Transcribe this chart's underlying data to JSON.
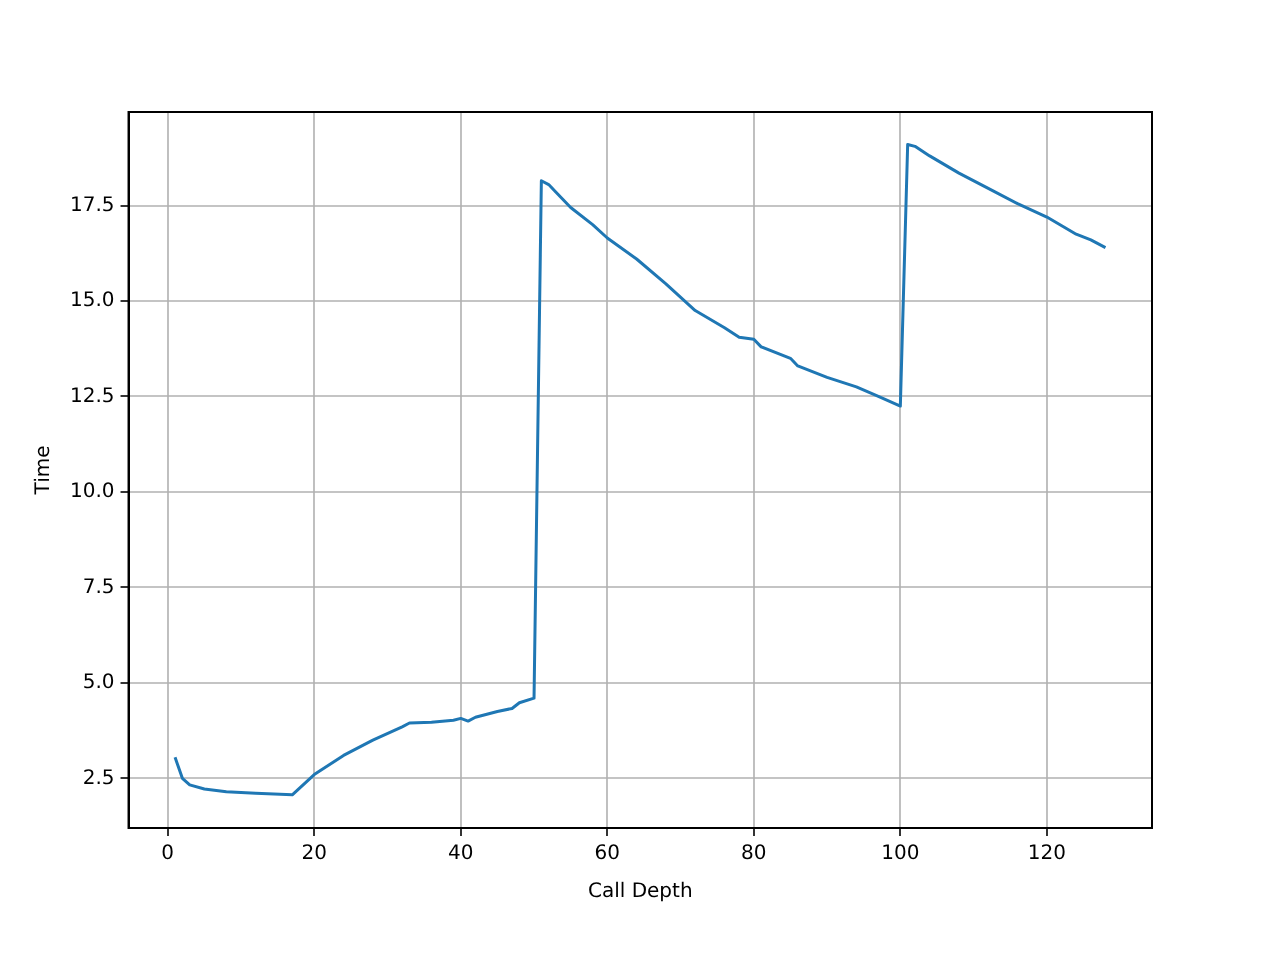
{
  "chart_data": {
    "type": "line",
    "xlabel": "Call Depth",
    "ylabel": "Time",
    "xlim": [
      -5.35,
      134.35
    ],
    "ylim": [
      1.2,
      19.95
    ],
    "xticks": [
      0,
      20,
      40,
      60,
      80,
      100,
      120
    ],
    "yticks": [
      {
        "value": 2.5,
        "label": "2.5"
      },
      {
        "value": 5,
        "label": "5.0"
      },
      {
        "value": 7.5,
        "label": "7.5"
      },
      {
        "value": 10,
        "label": "10.0"
      },
      {
        "value": 12.5,
        "label": "12.5"
      },
      {
        "value": 15,
        "label": "15.0"
      },
      {
        "value": 17.5,
        "label": "17.5"
      }
    ],
    "grid": true,
    "series": [
      {
        "color": "#1f77b4",
        "x": [
          1,
          2,
          3,
          5,
          8,
          12,
          17,
          20,
          24,
          28,
          32,
          33,
          36,
          39,
          40,
          41,
          42,
          45,
          47,
          48,
          50,
          51,
          52,
          53,
          55,
          58,
          60,
          64,
          68,
          72,
          76,
          78,
          80,
          81,
          85,
          86,
          90,
          94,
          97,
          100,
          101,
          102,
          104,
          108,
          112,
          116,
          120,
          124,
          126,
          128
        ],
        "values": [
          3.05,
          2.5,
          2.33,
          2.22,
          2.15,
          2.11,
          2.07,
          2.6,
          3.1,
          3.5,
          3.85,
          3.95,
          3.97,
          4.02,
          4.07,
          4.0,
          4.1,
          4.25,
          4.33,
          4.48,
          4.6,
          18.15,
          18.05,
          17.85,
          17.45,
          17.0,
          16.65,
          16.1,
          15.45,
          14.75,
          14.3,
          14.05,
          14.0,
          13.8,
          13.5,
          13.3,
          13.0,
          12.75,
          12.5,
          12.25,
          19.1,
          19.05,
          18.8,
          18.35,
          17.95,
          17.55,
          17.2,
          16.75,
          16.6,
          16.4
        ]
      }
    ]
  }
}
